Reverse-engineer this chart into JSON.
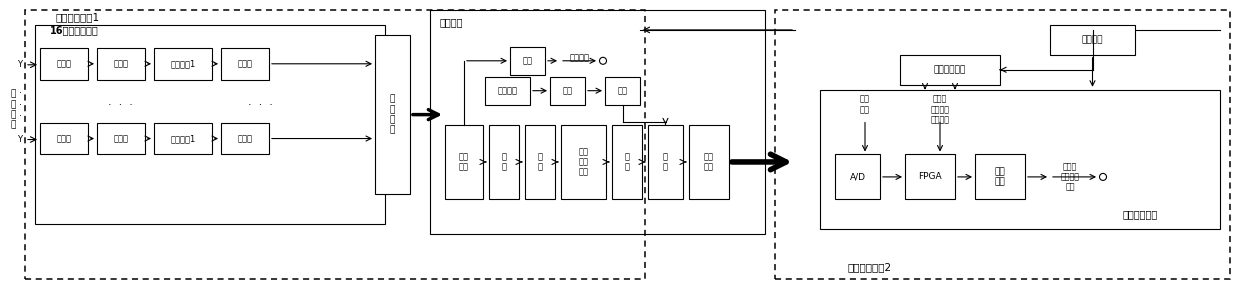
{
  "bg_color": "#ffffff",
  "fig_width": 12.4,
  "fig_height": 2.99,
  "dpi": 100,
  "module1_label": "模拟接收模块1",
  "module2_label": "数字接收模块2",
  "frontend_label": "16通道前端电路",
  "bianpin_label": "变频电路",
  "zhongpin_label": "中频数字电路",
  "antenna_label": "接\n收\n天\n线",
  "channel_top": [
    "滤波器",
    "限幅器",
    "数控衰减1",
    "低噪放"
  ],
  "channel_bot": [
    "滤波器",
    "限幅器",
    "数控衰减1",
    "低噪放"
  ],
  "lieXiang_label": "列\n向\n合\n成",
  "main_chain": [
    "数控\n衰减",
    "功\n分",
    "放\n大",
    "开关\n滤波\n器组",
    "放\n大",
    "混\n频",
    "中频\n滤波"
  ],
  "lo_chain": [
    "本振输入",
    "放大",
    "滤波"
  ],
  "rf_label": "放大",
  "rf_out_label": "射频输出",
  "power_label": "电源电路",
  "clock_dist_label": "时钟分配模块",
  "clock_sig_label": "时钟\n信号",
  "trigger_label": "主触发\n时钟信号\n控制命令",
  "digital_chain": [
    "A/D",
    "FPGA",
    "光电\n转换"
  ],
  "optical_label": "光网络\n数字中频\n信号"
}
